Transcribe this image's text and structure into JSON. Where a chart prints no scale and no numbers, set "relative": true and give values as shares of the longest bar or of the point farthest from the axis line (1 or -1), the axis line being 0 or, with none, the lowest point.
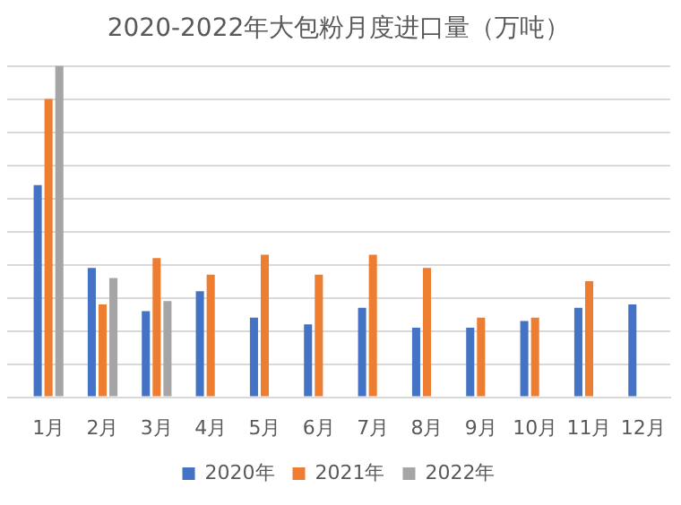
{
  "chart_data": {
    "type": "bar",
    "title": "2020-2022年大包粉月度进口量（万吨）",
    "relative": true,
    "grid": "y",
    "legend": "bottom",
    "categories": [
      "1月",
      "2月",
      "3月",
      "4月",
      "5月",
      "6月",
      "7月",
      "8月",
      "9月",
      "10月",
      "11月",
      "12月"
    ],
    "series": [
      {
        "name": "2020年",
        "color": "#4472c4",
        "values": [
          0.64,
          0.39,
          0.26,
          0.32,
          0.24,
          0.22,
          0.27,
          0.21,
          0.21,
          0.23,
          0.27,
          0.28
        ]
      },
      {
        "name": "2021年",
        "color": "#ed7d31",
        "values": [
          0.9,
          0.28,
          0.42,
          0.37,
          0.43,
          0.37,
          0.43,
          0.39,
          0.24,
          0.24,
          0.35,
          null
        ]
      },
      {
        "name": "2022年",
        "color": "#a5a5a5",
        "values": [
          1,
          0.36,
          0.29,
          null,
          null,
          null,
          null,
          null,
          null,
          null,
          null,
          null
        ]
      }
    ]
  }
}
